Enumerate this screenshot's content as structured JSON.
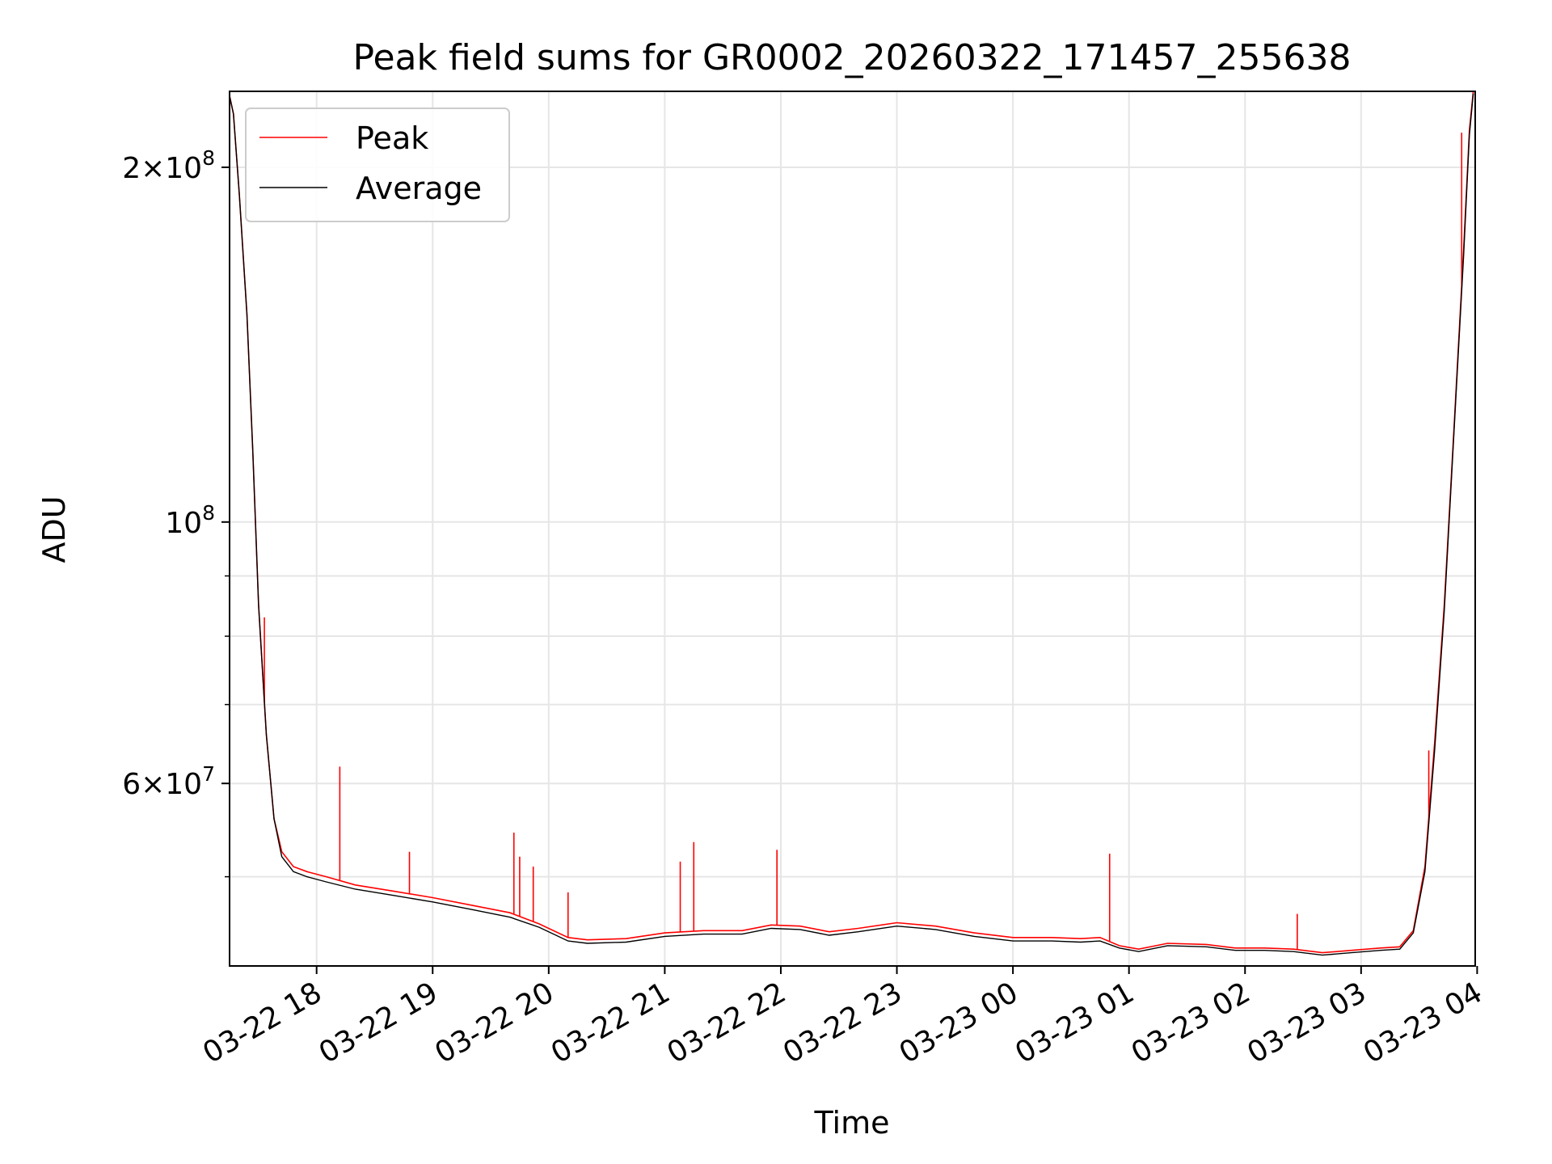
{
  "chart_data": {
    "type": "line",
    "title": "Peak field sums for GR0002_20260322_171457_255638",
    "xlabel": "Time",
    "ylabel": "ADU",
    "y_scale": "log",
    "ylim": [
      42000000,
      232000000
    ],
    "xlim": [
      "03-22 17:15",
      "03-23 03:59"
    ],
    "x_ticks": [
      "03-22 18",
      "03-22 19",
      "03-22 20",
      "03-22 21",
      "03-22 22",
      "03-22 23",
      "03-23 00",
      "03-23 01",
      "03-23 02",
      "03-23 03",
      "03-23 04"
    ],
    "x_tick_values": [
      "03-22 18:00",
      "03-22 19:00",
      "03-22 20:00",
      "03-22 21:00",
      "03-22 22:00",
      "03-22 23:00",
      "03-23 00:00",
      "03-23 01:00",
      "03-23 02:00",
      "03-23 03:00",
      "03-23 04:00"
    ],
    "y_major_ticks": [
      {
        "value": 200000000,
        "mantissa": "2",
        "exp": "8"
      },
      {
        "value": 100000000,
        "mantissa": "",
        "exp": "8"
      },
      {
        "value": 60000000,
        "mantissa": "6",
        "exp": "7"
      }
    ],
    "y_minor_ticks": [
      50000000,
      70000000,
      80000000,
      90000000
    ],
    "grid": true,
    "legend_position": "upper-left",
    "series": [
      {
        "name": "Peak",
        "color": "#ff0000",
        "x": [
          "03-22 17:15",
          "03-22 17:17",
          "03-22 17:20",
          "03-22 17:24",
          "03-22 17:27",
          "03-22 17:30",
          "03-22 17:34",
          "03-22 17:38",
          "03-22 17:42",
          "03-22 17:48",
          "03-22 17:55",
          "03-22 18:05",
          "03-22 18:20",
          "03-22 18:40",
          "03-22 19:00",
          "03-22 19:20",
          "03-22 19:40",
          "03-22 19:55",
          "03-22 20:10",
          "03-22 20:20",
          "03-22 20:40",
          "03-22 21:00",
          "03-22 21:20",
          "03-22 21:40",
          "03-22 21:55",
          "03-22 22:10",
          "03-22 22:25",
          "03-22 22:40",
          "03-22 23:00",
          "03-22 23:20",
          "03-22 23:40",
          "03-23 00:00",
          "03-23 00:20",
          "03-23 00:35",
          "03-23 00:45",
          "03-23 00:55",
          "03-23 01:05",
          "03-23 01:20",
          "03-23 01:40",
          "03-23 01:55",
          "03-23 02:10",
          "03-23 02:25",
          "03-23 02:40",
          "03-23 02:55",
          "03-23 03:10",
          "03-23 03:20",
          "03-23 03:27",
          "03-23 03:33",
          "03-23 03:38",
          "03-23 03:43",
          "03-23 03:48",
          "03-23 03:53",
          "03-23 03:56",
          "03-23 03:58"
        ],
        "values": [
          230000000,
          222000000,
          190000000,
          150000000,
          115000000,
          85000000,
          66000000,
          56000000,
          52500000,
          51000000,
          50500000,
          50000000,
          49200000,
          48600000,
          48000000,
          47300000,
          46600000,
          45600000,
          44400000,
          44200000,
          44300000,
          44800000,
          45000000,
          45000000,
          45500000,
          45400000,
          44900000,
          45200000,
          45700000,
          45400000,
          44800000,
          44400000,
          44400000,
          44300000,
          44400000,
          43700000,
          43400000,
          43900000,
          43800000,
          43500000,
          43500000,
          43400000,
          43100000,
          43300000,
          43500000,
          43600000,
          45000000,
          51000000,
          65000000,
          85000000,
          120000000,
          170000000,
          215000000,
          232000000
        ],
        "spikes": [
          {
            "x": "03-22 17:33",
            "value": 83000000
          },
          {
            "x": "03-22 18:12",
            "value": 62000000
          },
          {
            "x": "03-22 18:48",
            "value": 52500000
          },
          {
            "x": "03-22 19:42",
            "value": 54500000
          },
          {
            "x": "03-22 19:45",
            "value": 52000000
          },
          {
            "x": "03-22 19:52",
            "value": 51000000
          },
          {
            "x": "03-22 20:10",
            "value": 48500000
          },
          {
            "x": "03-22 21:08",
            "value": 51500000
          },
          {
            "x": "03-22 21:15",
            "value": 53500000
          },
          {
            "x": "03-22 21:58",
            "value": 52700000
          },
          {
            "x": "03-23 00:50",
            "value": 52300000
          },
          {
            "x": "03-23 02:27",
            "value": 46500000
          },
          {
            "x": "03-23 03:35",
            "value": 64000000
          },
          {
            "x": "03-23 03:52",
            "value": 214000000
          }
        ]
      },
      {
        "name": "Average",
        "color": "#000000",
        "x": [
          "03-22 17:15",
          "03-22 17:17",
          "03-22 17:20",
          "03-22 17:24",
          "03-22 17:27",
          "03-22 17:30",
          "03-22 17:34",
          "03-22 17:38",
          "03-22 17:42",
          "03-22 17:48",
          "03-22 17:55",
          "03-22 18:05",
          "03-22 18:20",
          "03-22 18:40",
          "03-22 19:00",
          "03-22 19:20",
          "03-22 19:40",
          "03-22 19:55",
          "03-22 20:10",
          "03-22 20:20",
          "03-22 20:40",
          "03-22 21:00",
          "03-22 21:20",
          "03-22 21:40",
          "03-22 21:55",
          "03-22 22:10",
          "03-22 22:25",
          "03-22 22:40",
          "03-22 23:00",
          "03-22 23:20",
          "03-22 23:40",
          "03-23 00:00",
          "03-23 00:20",
          "03-23 00:35",
          "03-23 00:45",
          "03-23 00:55",
          "03-23 01:05",
          "03-23 01:20",
          "03-23 01:40",
          "03-23 01:55",
          "03-23 02:10",
          "03-23 02:25",
          "03-23 02:40",
          "03-23 02:55",
          "03-23 03:10",
          "03-23 03:20",
          "03-23 03:27",
          "03-23 03:33",
          "03-23 03:38",
          "03-23 03:43",
          "03-23 03:48",
          "03-23 03:53",
          "03-23 03:56",
          "03-23 03:58"
        ],
        "values": [
          230000000,
          222000000,
          190000000,
          150000000,
          115000000,
          85000000,
          66000000,
          56000000,
          52000000,
          50500000,
          50000000,
          49500000,
          48800000,
          48200000,
          47600000,
          46900000,
          46200000,
          45300000,
          44100000,
          43900000,
          44000000,
          44500000,
          44700000,
          44700000,
          45200000,
          45100000,
          44600000,
          44900000,
          45400000,
          45100000,
          44500000,
          44100000,
          44100000,
          44000000,
          44100000,
          43500000,
          43200000,
          43700000,
          43600000,
          43300000,
          43300000,
          43200000,
          42900000,
          43100000,
          43300000,
          43400000,
          44800000,
          50500000,
          64000000,
          84000000,
          119000000,
          168000000,
          213000000,
          231000000
        ]
      }
    ]
  }
}
